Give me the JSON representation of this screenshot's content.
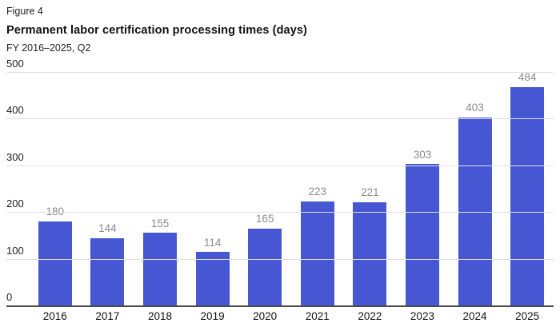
{
  "header": {
    "figure_label": "Figure 4",
    "title": "Permanent labor certification processing times (days)",
    "subtitle": "FY 2016–2025, Q2"
  },
  "chart_data": {
    "type": "bar",
    "title": "Permanent labor certification processing times (days)",
    "subtitle": "FY 2016–2025, Q2",
    "categories": [
      "2016",
      "2017",
      "2018",
      "2019",
      "2020",
      "2021",
      "2022",
      "2023",
      "2024",
      "2025"
    ],
    "values": [
      180,
      144,
      155,
      114,
      165,
      223,
      221,
      303,
      403,
      484
    ],
    "xlabel": "",
    "ylabel": "",
    "ylim": [
      0,
      500
    ],
    "yticks": [
      0,
      100,
      200,
      300,
      400,
      500
    ],
    "grid": true,
    "legend_position": "none",
    "colors": {
      "bar": "#4757d3",
      "gridline": "#e0e0e0",
      "baseline": "#4a4a4a",
      "value_label": "#8b8b8b",
      "axis_label": "#111111"
    }
  }
}
